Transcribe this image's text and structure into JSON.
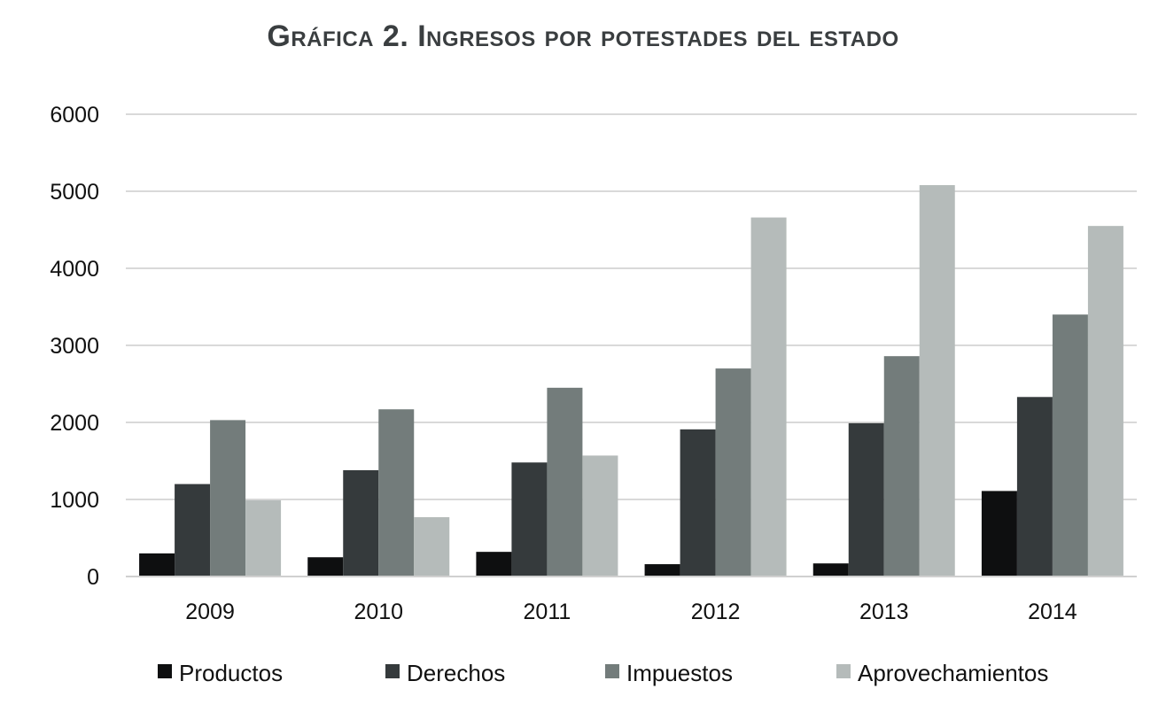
{
  "chart_data": {
    "type": "bar",
    "title": "Gráfica 2. Ingresos por potestades del estado",
    "xlabel": "",
    "ylabel": "",
    "ylim": [
      0,
      6000
    ],
    "yticks": [
      0,
      1000,
      2000,
      3000,
      4000,
      5000,
      6000
    ],
    "grid": true,
    "legend_position": "bottom",
    "categories": [
      "2009",
      "2010",
      "2011",
      "2012",
      "2013",
      "2014"
    ],
    "series": [
      {
        "name": "Productos",
        "color": "#0e0f10",
        "values": [
          300,
          250,
          320,
          160,
          170,
          1110
        ]
      },
      {
        "name": "Derechos",
        "color": "#353a3c",
        "values": [
          1200,
          1380,
          1480,
          1910,
          1990,
          2330
        ]
      },
      {
        "name": "Impuestos",
        "color": "#737c7b",
        "values": [
          2030,
          2170,
          2450,
          2700,
          2860,
          3400
        ]
      },
      {
        "name": "Aprovechamientos",
        "color": "#b5bbba",
        "values": [
          990,
          770,
          1570,
          4660,
          5080,
          4550
        ]
      }
    ]
  }
}
